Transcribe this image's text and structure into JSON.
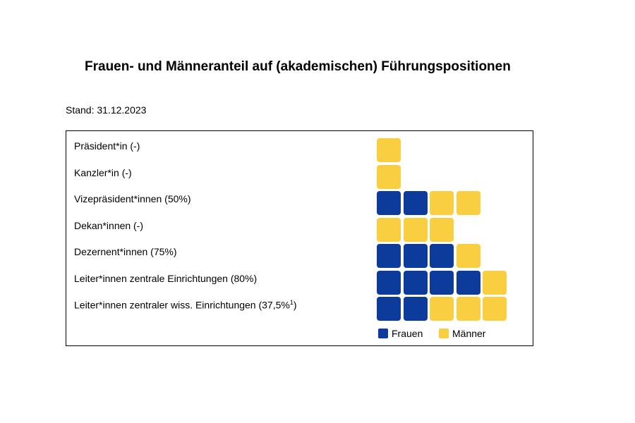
{
  "title": "Frauen- und Männeranteil auf (akademischen) Führungspositionen",
  "stand": "Stand: 31.12.2023",
  "colors": {
    "frauen": "#0d3b9c",
    "maenner": "#f9cf41"
  },
  "chart_data": {
    "type": "waffle",
    "title": "Frauen- und Männeranteil auf (akademischen) Führungspositionen",
    "legend": [
      {
        "name": "Frauen",
        "color": "#0d3b9c"
      },
      {
        "name": "Männer",
        "color": "#f9cf41"
      }
    ],
    "legend_position": "bottom-right",
    "rows": [
      {
        "label": "Präsident*in (-)",
        "frauen": 0,
        "maenner": 1
      },
      {
        "label": "Kanzler*in (-)",
        "frauen": 0,
        "maenner": 1
      },
      {
        "label": "Vizepräsident*innen (50%)",
        "frauen": 2,
        "maenner": 2
      },
      {
        "label": "Dekan*innen (-)",
        "frauen": 0,
        "maenner": 3
      },
      {
        "label": "Dezernent*innen (75%)",
        "frauen": 3,
        "maenner": 1
      },
      {
        "label": "Leiter*innen zentrale Einrichtungen (80%)",
        "frauen": 4,
        "maenner": 1
      },
      {
        "label": "Leiter*innen zentraler wiss. Einrichtungen (37,5%",
        "label_sup": "1",
        "label_suffix": ")",
        "frauen": 2,
        "maenner": 3
      }
    ]
  }
}
